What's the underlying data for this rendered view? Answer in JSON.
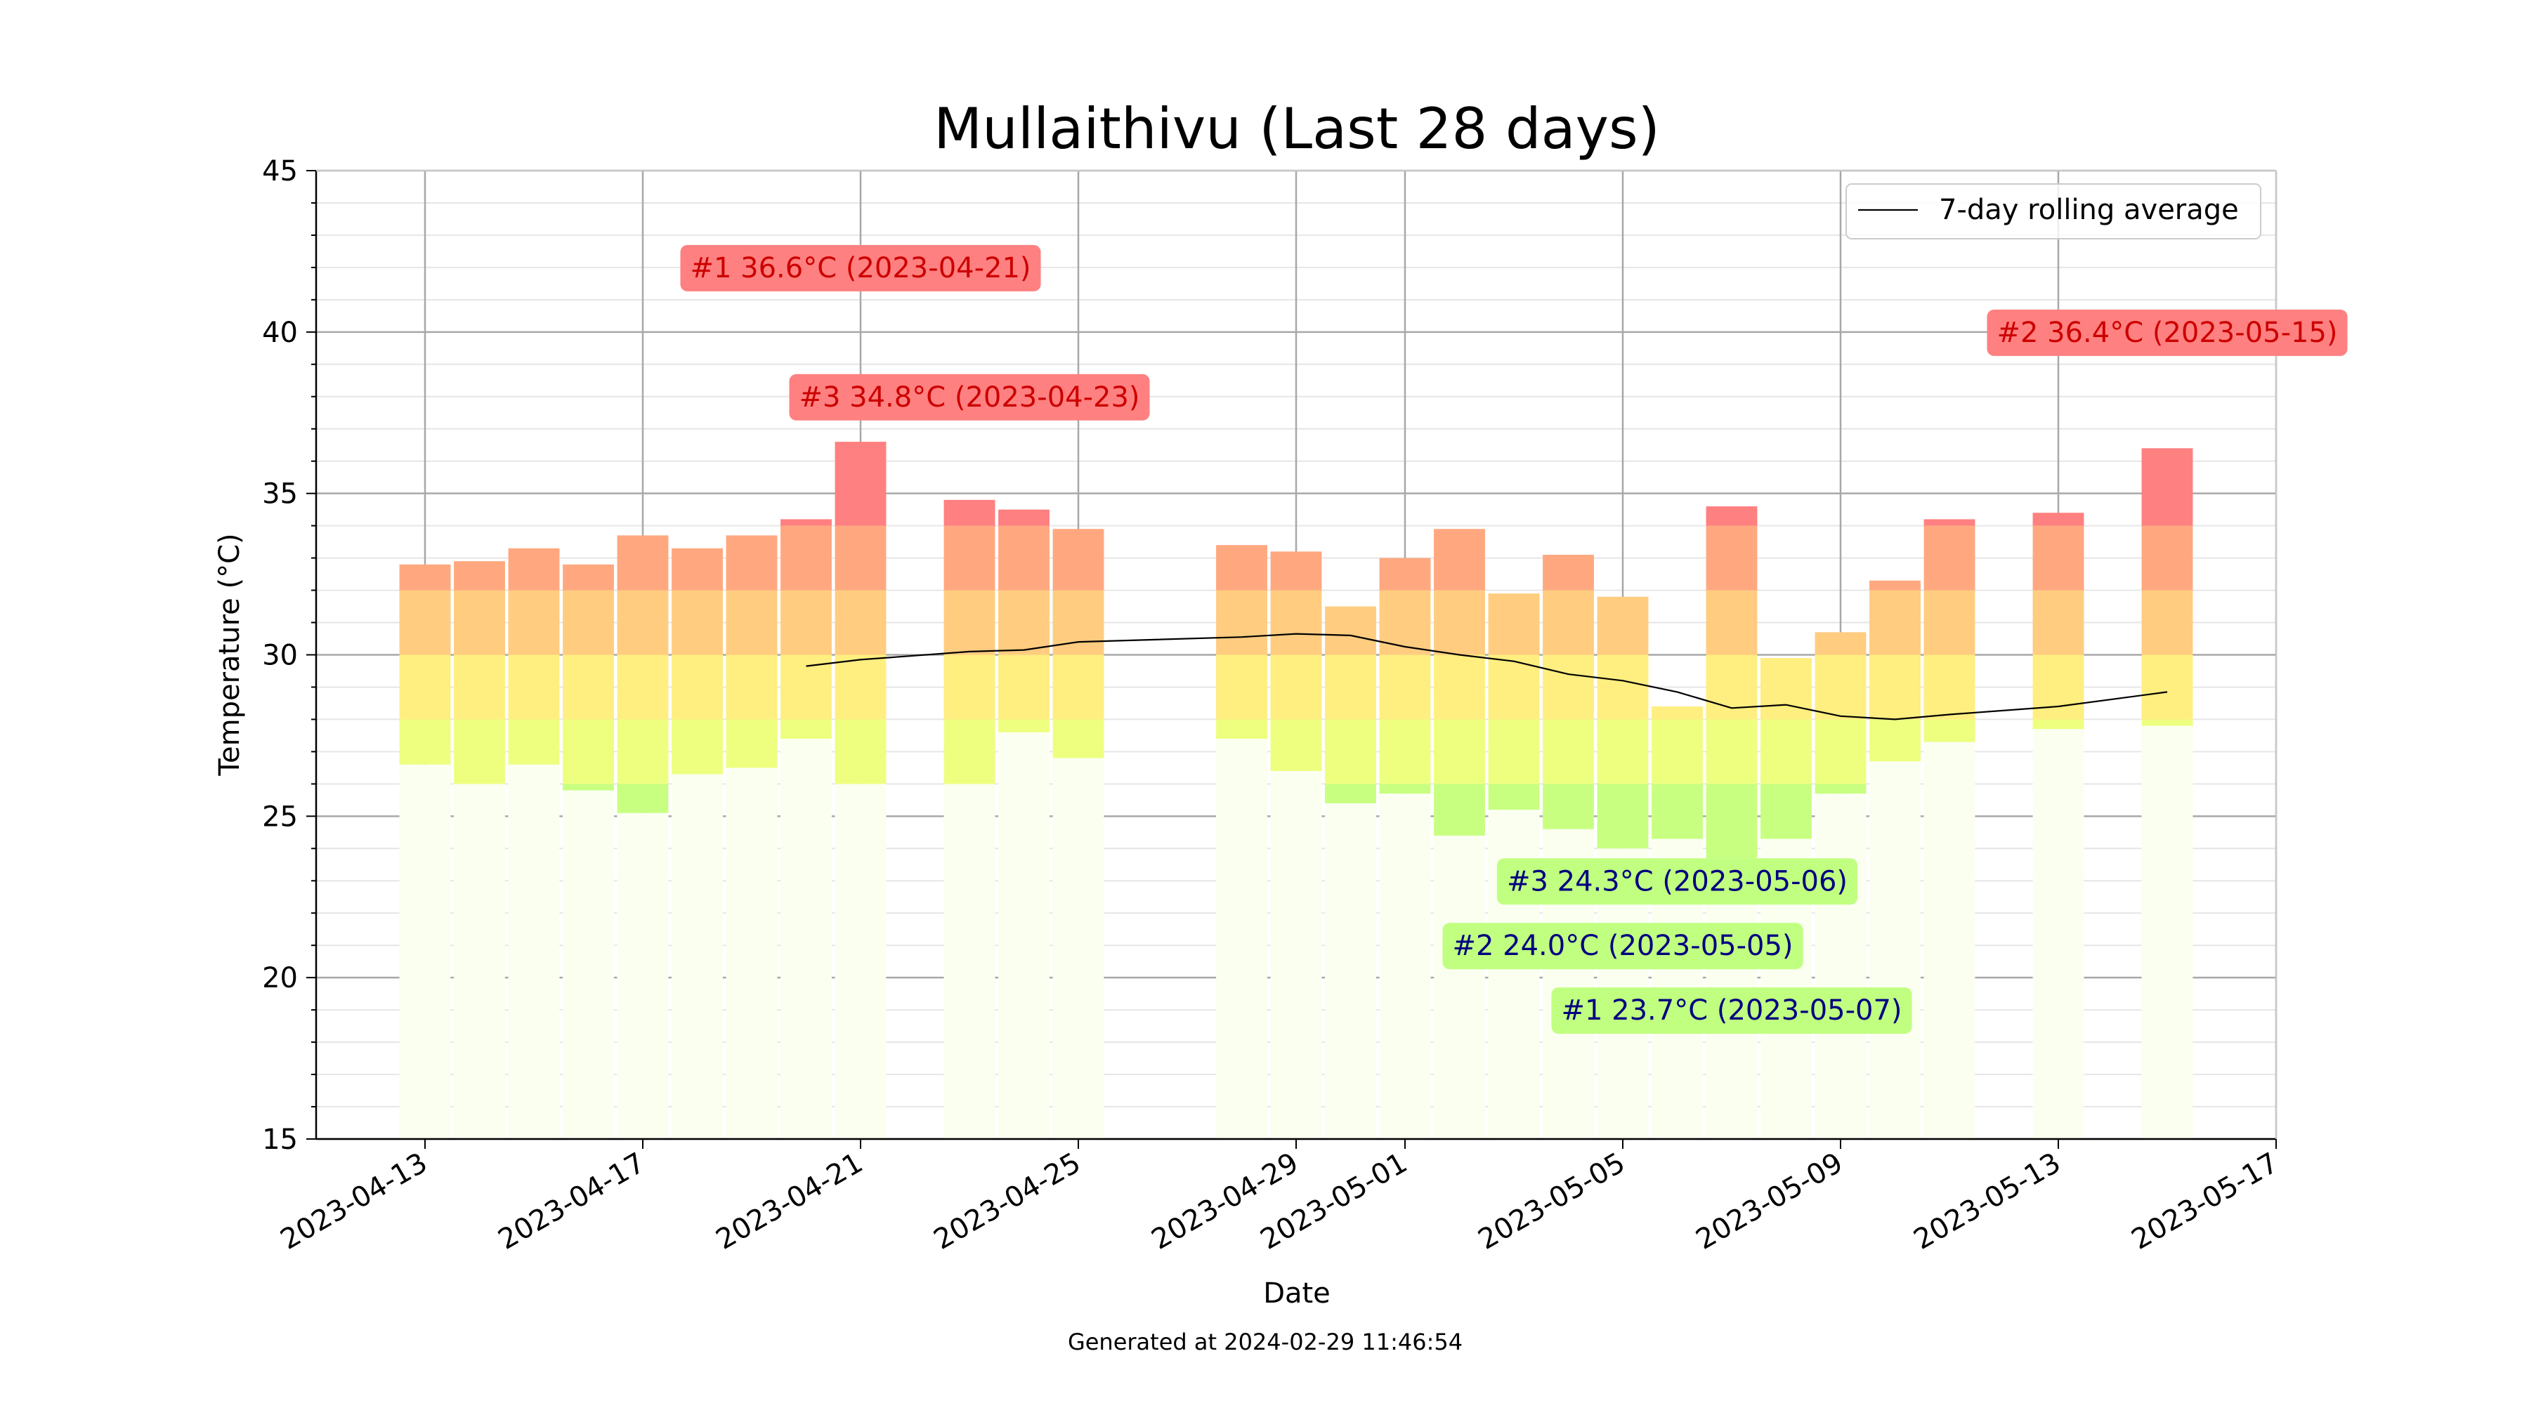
{
  "chart_data": {
    "type": "bar",
    "title": "Mullaithivu (Last 28 days)",
    "xlabel": "Date",
    "ylabel": "Temperature (°C)",
    "ylim": [
      15,
      45
    ],
    "xlim": [
      "2023-04-11",
      "2023-05-17"
    ],
    "yticks": [
      15,
      20,
      25,
      30,
      35,
      40,
      45
    ],
    "xticks": [
      "2023-04-13",
      "2023-04-17",
      "2023-04-21",
      "2023-04-25",
      "2023-04-29",
      "2023-05-01",
      "2023-05-05",
      "2023-05-09",
      "2023-05-13",
      "2023-05-17"
    ],
    "grid": true,
    "legend": {
      "position": "top-right",
      "entries": [
        "7-day rolling average"
      ]
    },
    "footer": "Generated at 2024-02-29 11:46:54",
    "days": [
      {
        "date": "2023-04-13",
        "min": 26.6,
        "max": 32.8
      },
      {
        "date": "2023-04-14",
        "min": 26.0,
        "max": 32.9
      },
      {
        "date": "2023-04-15",
        "min": 26.6,
        "max": 33.3
      },
      {
        "date": "2023-04-16",
        "min": 25.8,
        "max": 32.8
      },
      {
        "date": "2023-04-17",
        "min": 25.1,
        "max": 33.7
      },
      {
        "date": "2023-04-18",
        "min": 26.3,
        "max": 33.3
      },
      {
        "date": "2023-04-19",
        "min": 26.5,
        "max": 33.7
      },
      {
        "date": "2023-04-20",
        "min": 27.4,
        "max": 34.2
      },
      {
        "date": "2023-04-21",
        "min": 26.0,
        "max": 36.6
      },
      {
        "date": "2023-04-23",
        "min": 26.0,
        "max": 34.8
      },
      {
        "date": "2023-04-24",
        "min": 27.6,
        "max": 34.5
      },
      {
        "date": "2023-04-25",
        "min": 26.8,
        "max": 33.9
      },
      {
        "date": "2023-04-28",
        "min": 27.4,
        "max": 33.4
      },
      {
        "date": "2023-04-29",
        "min": 26.4,
        "max": 33.2
      },
      {
        "date": "2023-04-30",
        "min": 25.4,
        "max": 31.5
      },
      {
        "date": "2023-05-01",
        "min": 25.7,
        "max": 33.0
      },
      {
        "date": "2023-05-02",
        "min": 24.4,
        "max": 33.9
      },
      {
        "date": "2023-05-03",
        "min": 25.2,
        "max": 31.9
      },
      {
        "date": "2023-05-04",
        "min": 24.6,
        "max": 33.1
      },
      {
        "date": "2023-05-05",
        "min": 24.0,
        "max": 31.8
      },
      {
        "date": "2023-05-06",
        "min": 24.3,
        "max": 28.4
      },
      {
        "date": "2023-05-07",
        "min": 23.7,
        "max": 34.6
      },
      {
        "date": "2023-05-08",
        "min": 24.3,
        "max": 29.9
      },
      {
        "date": "2023-05-09",
        "min": 25.7,
        "max": 30.7
      },
      {
        "date": "2023-05-10",
        "min": 26.7,
        "max": 32.3
      },
      {
        "date": "2023-05-11",
        "min": 27.3,
        "max": 34.2
      },
      {
        "date": "2023-05-13",
        "min": 27.7,
        "max": 34.4
      },
      {
        "date": "2023-05-15",
        "min": 27.8,
        "max": 36.4
      }
    ],
    "rolling_average": {
      "name": "7-day rolling average",
      "points": [
        [
          "2023-04-20",
          29.65
        ],
        [
          "2023-04-21",
          29.85
        ],
        [
          "2023-04-23",
          30.1
        ],
        [
          "2023-04-24",
          30.15
        ],
        [
          "2023-04-25",
          30.4
        ],
        [
          "2023-04-28",
          30.55
        ],
        [
          "2023-04-29",
          30.65
        ],
        [
          "2023-04-30",
          30.6
        ],
        [
          "2023-05-01",
          30.25
        ],
        [
          "2023-05-02",
          30.0
        ],
        [
          "2023-05-03",
          29.8
        ],
        [
          "2023-05-04",
          29.4
        ],
        [
          "2023-05-05",
          29.2
        ],
        [
          "2023-05-06",
          28.85
        ],
        [
          "2023-05-07",
          28.35
        ],
        [
          "2023-05-08",
          28.45
        ],
        [
          "2023-05-09",
          28.1
        ],
        [
          "2023-05-10",
          28.0
        ],
        [
          "2023-05-11",
          28.15
        ],
        [
          "2023-05-13",
          28.4
        ],
        [
          "2023-05-15",
          28.85
        ]
      ]
    },
    "annotations": [
      {
        "text": "#1 36.6°C (2023-04-21)",
        "kind": "hot",
        "anchor_date": "2023-04-21",
        "anchor_value": 42.0
      },
      {
        "text": "#3 34.8°C (2023-04-23)",
        "kind": "hot",
        "anchor_date": "2023-04-23",
        "anchor_value": 38.0
      },
      {
        "text": "#2 36.4°C (2023-05-15)",
        "kind": "hot",
        "anchor_date": "2023-05-15",
        "anchor_value": 40.0
      },
      {
        "text": "#3 24.3°C (2023-05-06)",
        "kind": "cold",
        "anchor_date": "2023-05-06",
        "anchor_value": 23.0
      },
      {
        "text": "#2 24.0°C (2023-05-05)",
        "kind": "cold",
        "anchor_date": "2023-05-05",
        "anchor_value": 21.0
      },
      {
        "text": "#1 23.7°C (2023-05-07)",
        "kind": "cold",
        "anchor_date": "2023-05-07",
        "anchor_value": 19.0
      }
    ],
    "colors": {
      "band_cold": "#c8ff80",
      "band_mild": "#eeff80",
      "band_warm": "#ffee80",
      "band_hot": "#ffcc80",
      "band_hotter": "#ffa880",
      "band_hottest": "#ff8080",
      "rolling_line": "#000000",
      "hot_box": "#ff8080",
      "hot_text": "#cc0000",
      "cold_box": "#c0ff80",
      "cold_text": "#000080"
    }
  }
}
